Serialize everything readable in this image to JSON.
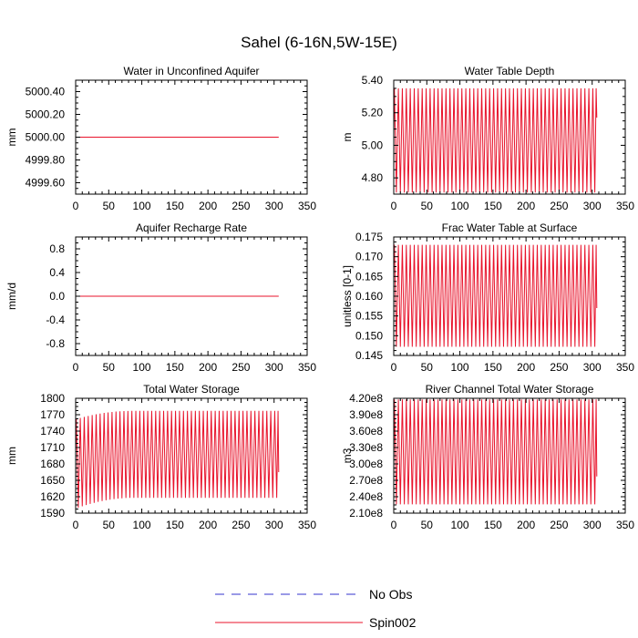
{
  "figure": {
    "title": "Sahel (6-16N,5W-15E)"
  },
  "series_styles": {
    "no_obs": {
      "name": "No Obs",
      "color": "#3333cc",
      "dash": "dashed"
    },
    "spin002": {
      "name": "Spin002",
      "color": "#e8132b",
      "dash": "solid"
    }
  },
  "legend": {
    "items": [
      {
        "key": "no_obs",
        "label": "No Obs"
      },
      {
        "key": "spin002",
        "label": "Spin002"
      }
    ]
  },
  "chart_data": [
    {
      "type": "line",
      "title": "Water in Unconfined Aquifer",
      "ylabel": "mm",
      "xlim": [
        0,
        350
      ],
      "xticks": [
        0,
        50,
        100,
        150,
        200,
        250,
        300,
        350
      ],
      "xtick_labels": [
        "0",
        "50",
        "100",
        "150",
        "200",
        "250",
        "300",
        "350"
      ],
      "ylim": [
        4999.5,
        5000.5
      ],
      "yticks": [
        4999.6,
        4999.8,
        5000.0,
        5000.2,
        5000.4
      ],
      "ytick_labels": [
        "4999.60",
        "4999.80",
        "5000.00",
        "5000.20",
        "5000.40"
      ],
      "series": [
        {
          "name": "Spin002",
          "pattern": "constant",
          "x_start": 0,
          "x_end": 307,
          "value": 5000.0
        }
      ]
    },
    {
      "type": "line",
      "title": "Water Table Depth",
      "ylabel": "m",
      "xlim": [
        0,
        350
      ],
      "xticks": [
        0,
        50,
        100,
        150,
        200,
        250,
        300,
        350
      ],
      "xtick_labels": [
        "0",
        "50",
        "100",
        "150",
        "200",
        "250",
        "300",
        "350"
      ],
      "ylim": [
        4.7,
        5.4
      ],
      "yticks": [
        4.8,
        5.0,
        5.2,
        5.4
      ],
      "ytick_labels": [
        "4.80",
        "5.00",
        "5.20",
        "5.40"
      ],
      "series": [
        {
          "name": "Spin002",
          "pattern": "seasonal",
          "x_start": 0,
          "x_end": 307,
          "period": 6,
          "min": 4.71,
          "max": 5.35,
          "start_value": 5.07,
          "end_value": 5.17
        }
      ]
    },
    {
      "type": "line",
      "title": "Aquifer Recharge Rate",
      "ylabel": "mm/d",
      "xlim": [
        0,
        350
      ],
      "xticks": [
        0,
        50,
        100,
        150,
        200,
        250,
        300,
        350
      ],
      "xtick_labels": [
        "0",
        "50",
        "100",
        "150",
        "200",
        "250",
        "300",
        "350"
      ],
      "ylim": [
        -1.0,
        1.0
      ],
      "yticks": [
        -0.8,
        -0.4,
        0.0,
        0.4,
        0.8
      ],
      "ytick_labels": [
        "-0.8",
        "-0.4",
        "0.0",
        "0.4",
        "0.8"
      ],
      "series": [
        {
          "name": "Spin002",
          "pattern": "constant",
          "x_start": 0,
          "x_end": 307,
          "value": 0.0
        }
      ]
    },
    {
      "type": "line",
      "title": "Frac Water Table at Surface",
      "ylabel": "unitless [0-1]",
      "xlim": [
        0,
        350
      ],
      "xticks": [
        0,
        50,
        100,
        150,
        200,
        250,
        300,
        350
      ],
      "xtick_labels": [
        "0",
        "50",
        "100",
        "150",
        "200",
        "250",
        "300",
        "350"
      ],
      "ylim": [
        0.145,
        0.175
      ],
      "yticks": [
        0.145,
        0.15,
        0.155,
        0.16,
        0.165,
        0.17,
        0.175
      ],
      "ytick_labels": [
        "0.145",
        "0.150",
        "0.155",
        "0.160",
        "0.165",
        "0.170",
        "0.175"
      ],
      "series": [
        {
          "name": "Spin002",
          "pattern": "seasonal",
          "x_start": 0,
          "x_end": 307,
          "period": 6,
          "min": 0.1472,
          "max": 0.173,
          "start_value": 0.168,
          "end_value": 0.157
        }
      ]
    },
    {
      "type": "line",
      "title": "Total Water Storage",
      "ylabel": "mm",
      "xlim": [
        0,
        350
      ],
      "xticks": [
        0,
        50,
        100,
        150,
        200,
        250,
        300,
        350
      ],
      "xtick_labels": [
        "0",
        "50",
        "100",
        "150",
        "200",
        "250",
        "300",
        "350"
      ],
      "ylim": [
        1590,
        1800
      ],
      "yticks": [
        1590,
        1620,
        1650,
        1680,
        1710,
        1740,
        1770,
        1800
      ],
      "ytick_labels": [
        "1590",
        "1620",
        "1650",
        "1680",
        "1710",
        "1740",
        "1770",
        "1800"
      ],
      "series": [
        {
          "name": "Spin002",
          "pattern": "seasonal_spinup",
          "x_start": 0,
          "x_end": 307,
          "period": 6,
          "min": 1618,
          "max": 1777,
          "first_min": 1600,
          "first_max": 1762,
          "start_value": 1700,
          "end_value": 1665
        }
      ]
    },
    {
      "type": "line",
      "title": "River Channel Total Water Storage",
      "ylabel": "m3",
      "xlim": [
        0,
        350
      ],
      "xticks": [
        0,
        50,
        100,
        150,
        200,
        250,
        300,
        350
      ],
      "xtick_labels": [
        "0",
        "50",
        "100",
        "150",
        "200",
        "250",
        "300",
        "350"
      ],
      "ylim": [
        210000000,
        420000000
      ],
      "yticks": [
        210000000,
        240000000,
        270000000,
        300000000,
        330000000,
        360000000,
        390000000,
        420000000
      ],
      "ytick_labels": [
        "2.10e8",
        "2.40e8",
        "2.70e8",
        "3.00e8",
        "3.30e8",
        "3.60e8",
        "3.90e8",
        "4.20e8"
      ],
      "series": [
        {
          "name": "Spin002",
          "pattern": "seasonal",
          "x_start": 0,
          "x_end": 307,
          "period": 6,
          "min": 226000000,
          "max": 418000000,
          "start_value": 300000000,
          "end_value": 277000000
        }
      ]
    }
  ]
}
